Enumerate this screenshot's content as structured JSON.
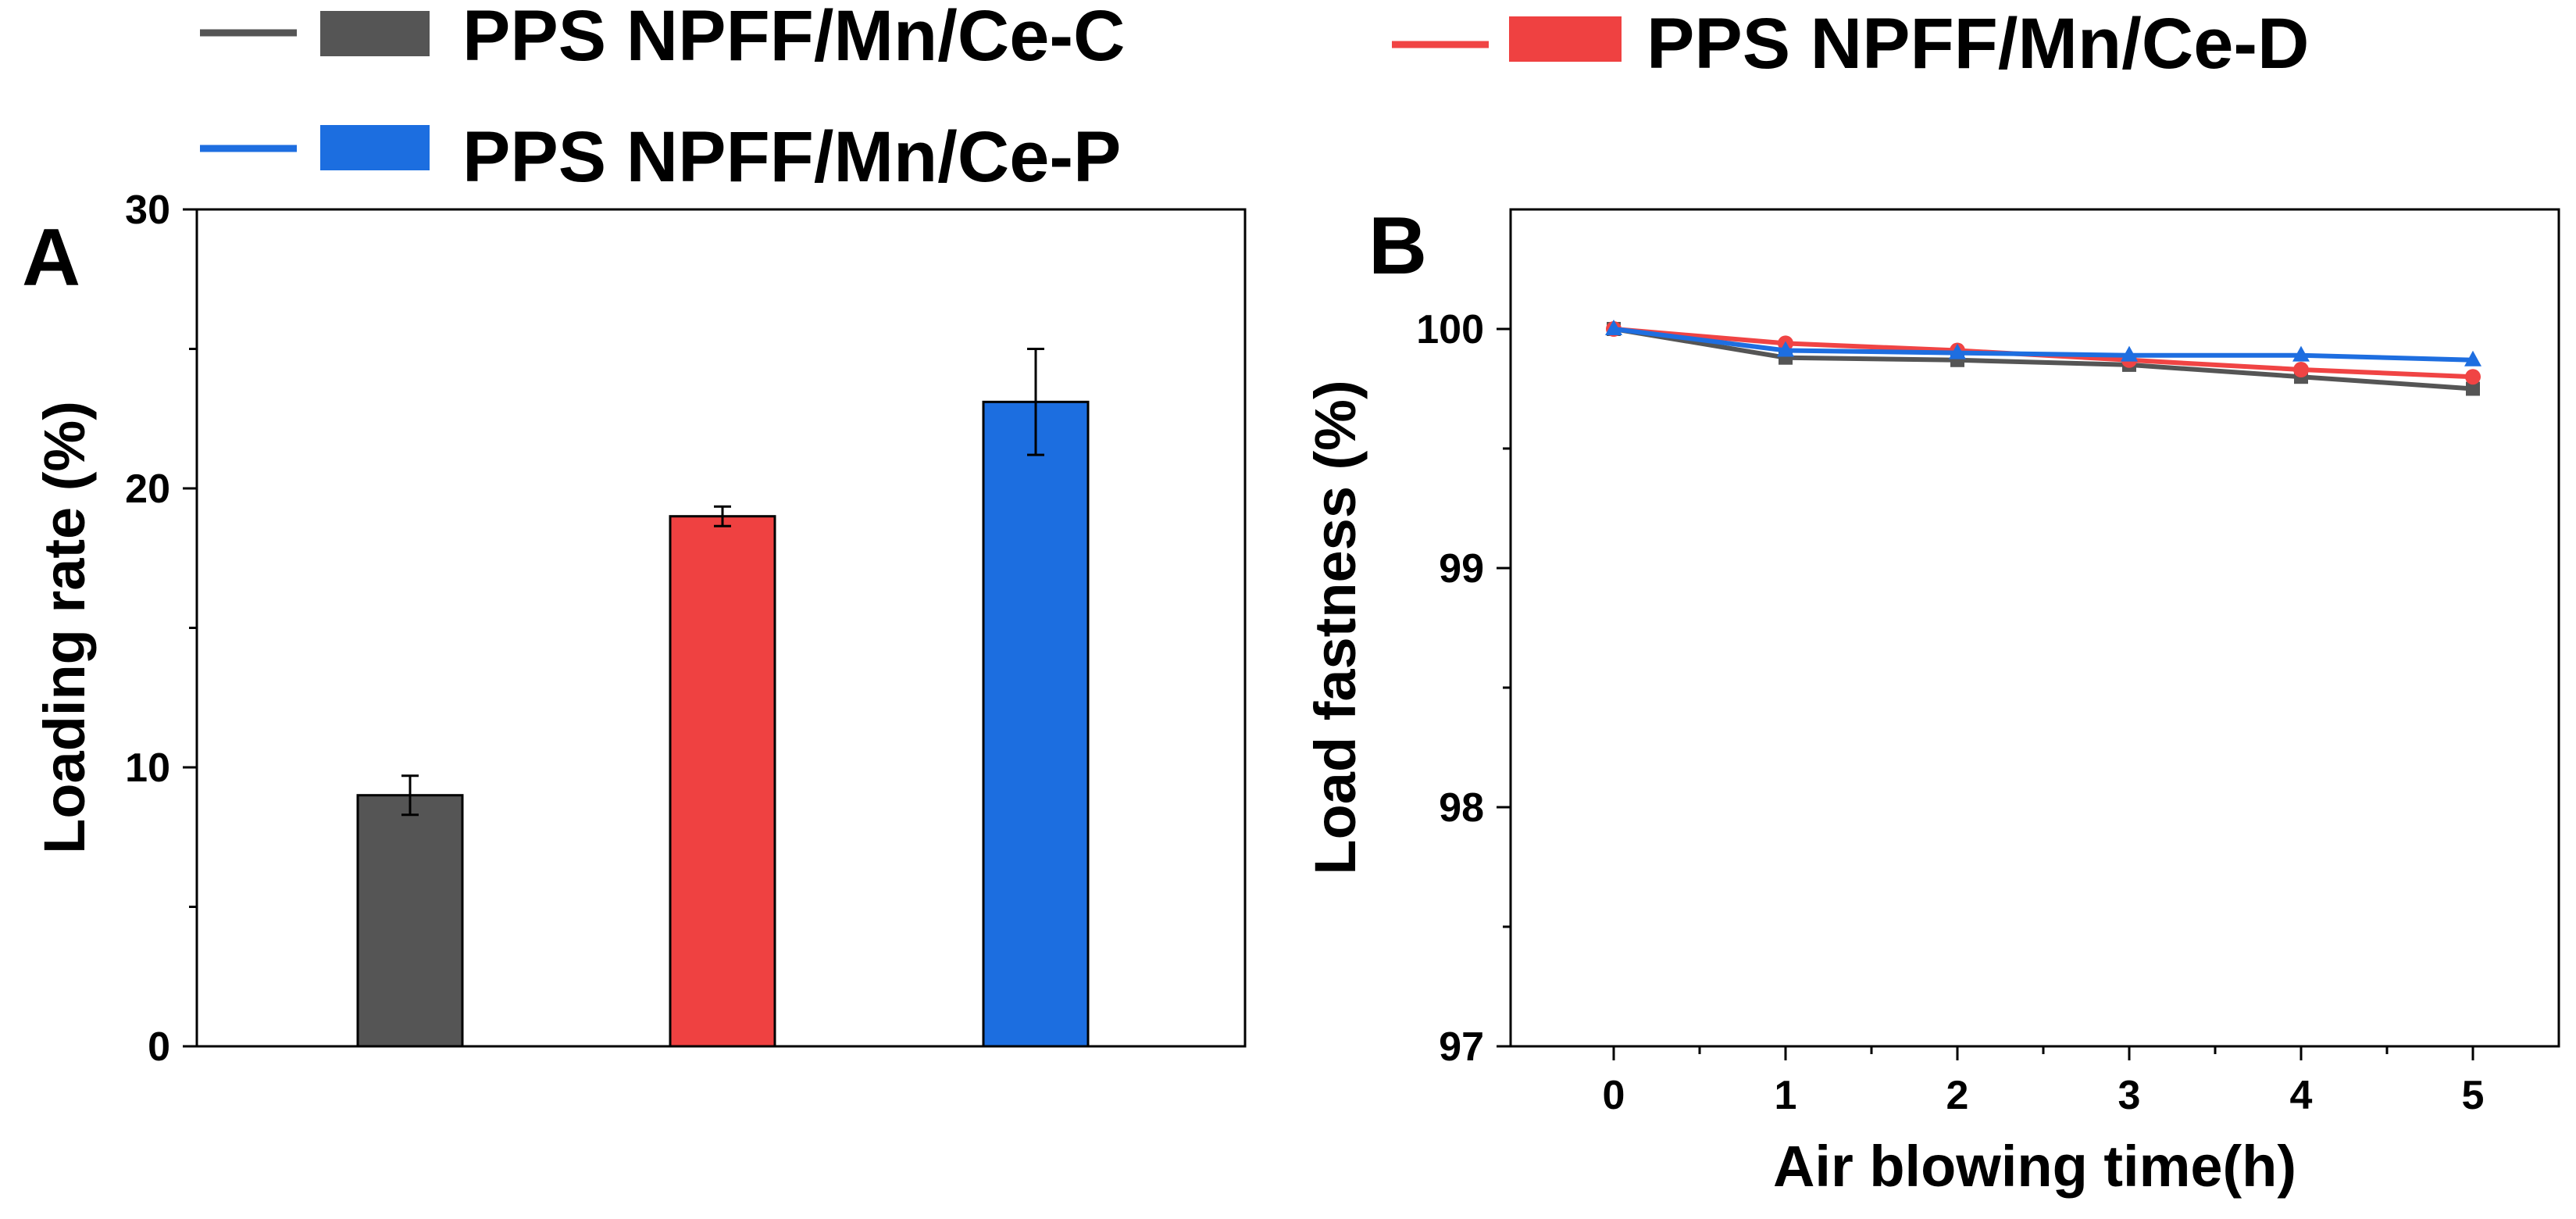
{
  "legend": [
    {
      "name": "PPS NPFF/Mn/Ce-C",
      "color": "#555555",
      "fill": "#555555",
      "marker": "square"
    },
    {
      "name": "PPS NPFF/Mn/Ce-D",
      "color": "#f04444",
      "fill": "#ef4141",
      "marker": "circle"
    },
    {
      "name": "PPS NPFF/Mn/Ce-P",
      "color": "#1e6ee0",
      "fill": "#1c6ee0",
      "marker": "triangle"
    }
  ],
  "chart_data": [
    {
      "panel": "A",
      "type": "bar",
      "title": "",
      "xlabel": "",
      "ylabel": "Loading rate (%)",
      "ylim": [
        0,
        30
      ],
      "yticks": [
        0,
        10,
        20,
        30
      ],
      "grid": false,
      "categories": [
        "PPS NPFF/Mn/Ce-C",
        "PPS NPFF/Mn/Ce-D",
        "PPS NPFF/Mn/Ce-P"
      ],
      "values": [
        9.0,
        19.0,
        23.1
      ],
      "errors": [
        0.7,
        0.35,
        1.9
      ]
    },
    {
      "panel": "B",
      "type": "line",
      "title": "",
      "xlabel": "Air blowing time(h)",
      "ylabel": "Load fastness (%)",
      "xlim": [
        -0.6,
        5.5
      ],
      "ylim": [
        97,
        100.5
      ],
      "xticks": [
        0,
        1,
        2,
        3,
        4,
        5
      ],
      "yticks": [
        97,
        98,
        99,
        100
      ],
      "grid": false,
      "x": [
        0,
        1,
        2,
        3,
        4,
        5
      ],
      "series": [
        {
          "name": "PPS NPFF/Mn/Ce-C",
          "values": [
            100.0,
            99.88,
            99.87,
            99.85,
            99.8,
            99.75
          ]
        },
        {
          "name": "PPS NPFF/Mn/Ce-D",
          "values": [
            100.0,
            99.94,
            99.91,
            99.87,
            99.83,
            99.8
          ]
        },
        {
          "name": "PPS NPFF/Mn/Ce-P",
          "values": [
            100.0,
            99.91,
            99.9,
            99.89,
            99.89,
            99.87
          ]
        }
      ]
    }
  ]
}
